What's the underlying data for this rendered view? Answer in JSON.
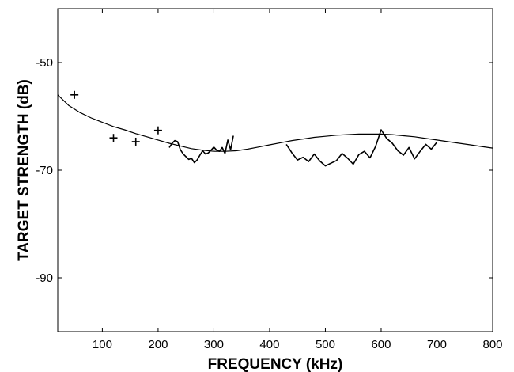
{
  "chart_data": {
    "type": "line",
    "title": "",
    "xlabel": "FREQUENCY (kHz)",
    "ylabel": "TARGET STRENGTH (dB)",
    "xlim": [
      20,
      800
    ],
    "ylim": [
      -100,
      -40
    ],
    "xticks": [
      100,
      200,
      300,
      400,
      500,
      600,
      700,
      800
    ],
    "yticks": [
      -50,
      -70,
      -90
    ],
    "grid": false,
    "legend": "none",
    "series": [
      {
        "kind": "model-curve",
        "color": "#000000",
        "x": [
          20,
          40,
          60,
          80,
          100,
          120,
          140,
          160,
          180,
          200,
          220,
          240,
          260,
          280,
          300,
          320,
          340,
          360,
          380,
          400,
          420,
          440,
          460,
          480,
          500,
          520,
          540,
          560,
          580,
          600,
          620,
          640,
          660,
          680,
          700,
          720,
          740,
          760,
          780,
          800
        ],
        "y": [
          -56,
          -58,
          -59.3,
          -60.3,
          -61.1,
          -61.9,
          -62.5,
          -63.2,
          -63.8,
          -64.4,
          -65,
          -65.5,
          -66,
          -66.3,
          -66.5,
          -66.5,
          -66.4,
          -66.1,
          -65.7,
          -65.3,
          -64.9,
          -64.5,
          -64.2,
          -63.9,
          -63.7,
          -63.5,
          -63.4,
          -63.3,
          -63.3,
          -63.3,
          -63.4,
          -63.6,
          -63.8,
          -64.1,
          -64.4,
          -64.7,
          -65,
          -65.3,
          -65.6,
          -65.9
        ]
      },
      {
        "kind": "measured-band-1",
        "color": "#000000",
        "x": [
          220,
          225,
          230,
          235,
          240,
          245,
          250,
          255,
          260,
          265,
          270,
          275,
          280,
          285,
          290,
          295,
          300,
          305,
          310,
          315,
          320,
          325,
          330,
          335
        ],
        "y": [
          -65.8,
          -65,
          -64.5,
          -64.7,
          -66.2,
          -67,
          -67.5,
          -68,
          -67.8,
          -68.6,
          -68.1,
          -67.2,
          -66.4,
          -67,
          -66.8,
          -66.3,
          -65.7,
          -66.3,
          -66.5,
          -65.8,
          -66.9,
          -64.4,
          -66.2,
          -63.6
        ]
      },
      {
        "kind": "measured-band-2",
        "color": "#000000",
        "x": [
          430,
          440,
          450,
          460,
          470,
          480,
          490,
          500,
          510,
          520,
          530,
          540,
          550,
          560,
          570,
          580,
          590,
          600,
          610,
          620,
          630,
          640,
          650,
          660,
          670,
          680,
          690,
          700
        ],
        "y": [
          -65.2,
          -66.8,
          -68.1,
          -67.6,
          -68.4,
          -67,
          -68.3,
          -69.2,
          -68.7,
          -68.2,
          -66.9,
          -67.8,
          -68.9,
          -67.1,
          -66.5,
          -67.7,
          -65.6,
          -62.5,
          -64.1,
          -65,
          -66.4,
          -67.2,
          -65.8,
          -67.9,
          -66.5,
          -65.2,
          -66.1,
          -64.8
        ]
      },
      {
        "kind": "points",
        "marker": "+",
        "color": "#000000",
        "x": [
          50,
          120,
          160,
          200
        ],
        "y": [
          -56,
          -64,
          -64.7,
          -62.6
        ]
      }
    ]
  }
}
